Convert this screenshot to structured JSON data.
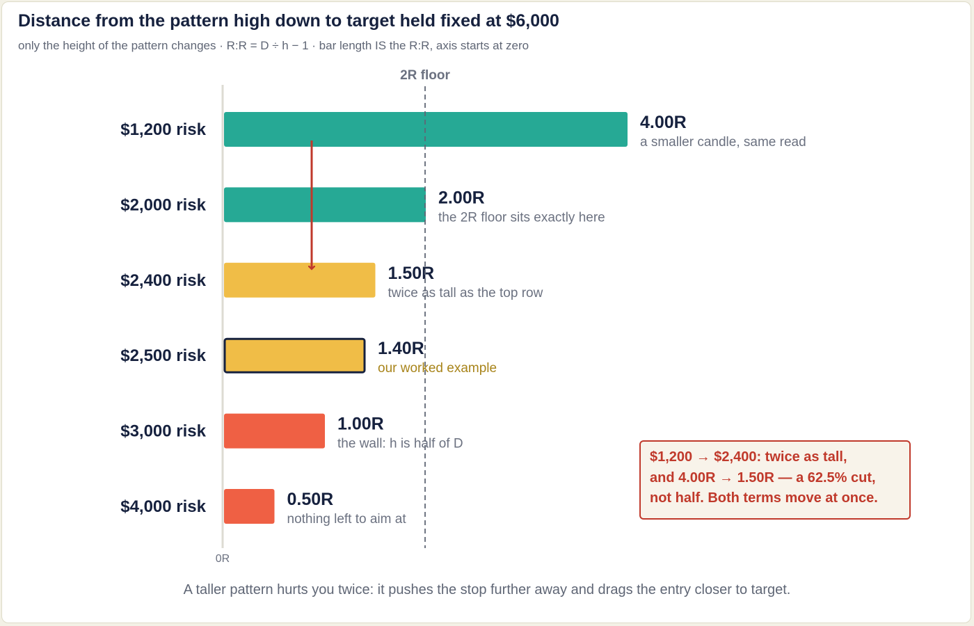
{
  "chart_data": {
    "type": "bar",
    "orientation": "horizontal",
    "title": "Distance from the pattern high down to target held fixed at $6,000",
    "subtitle": "only the height of the pattern changes  ·  R:R = D ÷ h − 1  ·  bar length IS the R:R, axis starts at zero",
    "categories": [
      "$1,200 risk",
      "$2,000 risk",
      "$2,400 risk",
      "$2,500 risk",
      "$3,000 risk",
      "$4,000 risk"
    ],
    "values": [
      4.0,
      2.0,
      1.5,
      1.4,
      1.0,
      0.5
    ],
    "value_labels": [
      "4.00R",
      "2.00R",
      "1.50R",
      "1.40R",
      "1.00R",
      "0.50R"
    ],
    "notes": [
      "a smaller candle, same read",
      "the 2R floor sits exactly here",
      "twice as tall as the top row",
      "our worked example",
      "the wall: h is half of D",
      "nothing left to aim at"
    ],
    "bar_colors": [
      "#26a995",
      "#26a995",
      "#f0bd47",
      "#f0bd47",
      "#ef6044",
      "#ef6044"
    ],
    "highlight_index": 3,
    "reference_line": {
      "value": 2,
      "label": "2R floor"
    },
    "axis": {
      "min": 0,
      "tick_label": "0R"
    },
    "arrow": {
      "from_index": 0,
      "to_index": 2,
      "color": "#c0392b"
    },
    "grid": false,
    "legend": "none"
  },
  "callout": {
    "lines": [
      "$1,200 → $2,400: twice as tall,",
      "and 4.00R → 1.50R — a 62.5% cut,",
      "not half. Both terms move at once."
    ]
  },
  "footer": "A taller pattern hurts you twice: it pushes the stop further away and drags the entry closer to target.",
  "colors": {
    "teal": "#26a995",
    "gold": "#f0bd47",
    "coral": "#ef6044",
    "navy": "#16213e",
    "red": "#c0392b"
  }
}
